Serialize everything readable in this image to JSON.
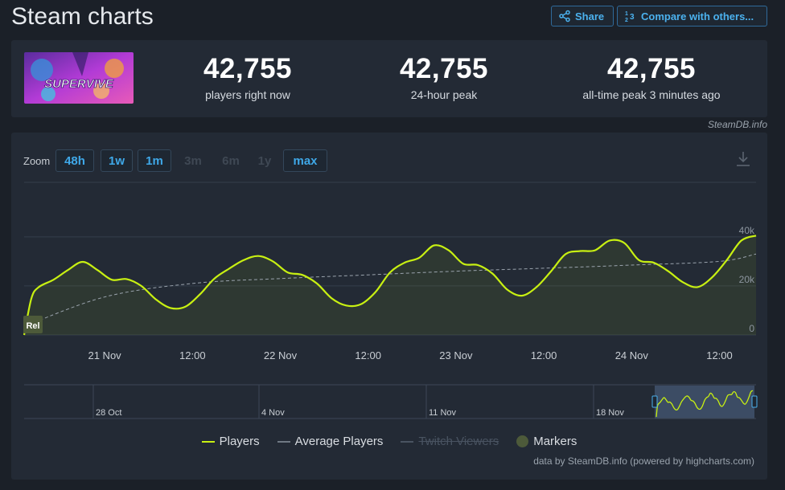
{
  "page": {
    "title": "Steam charts"
  },
  "actions": {
    "share": "Share",
    "compare": "Compare with others..."
  },
  "game": {
    "logo_text": "SUPERVIVE"
  },
  "stats": [
    {
      "value": "42,755",
      "label": "players right now"
    },
    {
      "value": "42,755",
      "label": "24-hour peak"
    },
    {
      "value": "42,755",
      "label": "all-time peak 3 minutes ago"
    }
  ],
  "credit_top": "SteamDB.info",
  "zoom": {
    "label": "Zoom",
    "options": [
      {
        "label": "48h",
        "enabled": true
      },
      {
        "label": "1w",
        "enabled": true
      },
      {
        "label": "1m",
        "enabled": true
      },
      {
        "label": "3m",
        "enabled": false
      },
      {
        "label": "6m",
        "enabled": false
      },
      {
        "label": "1y",
        "enabled": false
      },
      {
        "label": "max",
        "enabled": true
      }
    ]
  },
  "chart_data": {
    "type": "line",
    "x_tick_labels": [
      "21 Nov",
      "12:00",
      "22 Nov",
      "12:00",
      "23 Nov",
      "12:00",
      "24 Nov",
      "12:00"
    ],
    "y_tick_labels": [
      "0",
      "20k",
      "40k"
    ],
    "ylim": [
      0,
      40000
    ],
    "x_start": "2024-11-20T13:00",
    "x_end": "2024-11-24T17:00",
    "grid": true,
    "legend_position": "bottom",
    "annotation": "Rel",
    "series": [
      {
        "name": "Players",
        "color": "#c8f012",
        "points": [
          [
            "2024-11-20T13:00",
            0
          ],
          [
            "2024-11-20T14:00",
            15000
          ],
          [
            "2024-11-20T15:00",
            19500
          ],
          [
            "2024-11-20T17:00",
            22500
          ],
          [
            "2024-11-20T19:00",
            26500
          ],
          [
            "2024-11-20T21:00",
            29800
          ],
          [
            "2024-11-20T23:00",
            26500
          ],
          [
            "2024-11-21T01:00",
            22500
          ],
          [
            "2024-11-21T03:00",
            22800
          ],
          [
            "2024-11-21T05:00",
            20000
          ],
          [
            "2024-11-21T07:00",
            14500
          ],
          [
            "2024-11-21T09:00",
            11000
          ],
          [
            "2024-11-21T11:00",
            11500
          ],
          [
            "2024-11-21T13:00",
            16500
          ],
          [
            "2024-11-21T15:00",
            23000
          ],
          [
            "2024-11-21T17:00",
            27000
          ],
          [
            "2024-11-21T19:00",
            30500
          ],
          [
            "2024-11-21T21:00",
            32200
          ],
          [
            "2024-11-21T23:00",
            30000
          ],
          [
            "2024-11-22T01:00",
            25500
          ],
          [
            "2024-11-22T03:00",
            24500
          ],
          [
            "2024-11-22T05:00",
            21000
          ],
          [
            "2024-11-22T07:00",
            15000
          ],
          [
            "2024-11-22T09:00",
            12000
          ],
          [
            "2024-11-22T11:00",
            12500
          ],
          [
            "2024-11-22T13:00",
            17500
          ],
          [
            "2024-11-22T15:00",
            25500
          ],
          [
            "2024-11-22T17:00",
            29500
          ],
          [
            "2024-11-22T19:00",
            31500
          ],
          [
            "2024-11-22T21:00",
            36500
          ],
          [
            "2024-11-22T23:00",
            34500
          ],
          [
            "2024-11-23T01:00",
            29000
          ],
          [
            "2024-11-23T03:00",
            28500
          ],
          [
            "2024-11-23T05:00",
            25000
          ],
          [
            "2024-11-23T07:00",
            18500
          ],
          [
            "2024-11-23T09:00",
            16000
          ],
          [
            "2024-11-23T11:00",
            19500
          ],
          [
            "2024-11-23T13:00",
            26000
          ],
          [
            "2024-11-23T15:00",
            33000
          ],
          [
            "2024-11-23T17:00",
            34200
          ],
          [
            "2024-11-23T19:00",
            34500
          ],
          [
            "2024-11-23T21:00",
            38500
          ],
          [
            "2024-11-23T23:00",
            37500
          ],
          [
            "2024-11-24T01:00",
            30500
          ],
          [
            "2024-11-24T03:00",
            29500
          ],
          [
            "2024-11-24T05:00",
            26000
          ],
          [
            "2024-11-24T07:00",
            21500
          ],
          [
            "2024-11-24T09:00",
            19500
          ],
          [
            "2024-11-24T11:00",
            23500
          ],
          [
            "2024-11-24T13:00",
            30500
          ],
          [
            "2024-11-24T15:00",
            38500
          ],
          [
            "2024-11-24T17:00",
            40500
          ]
        ]
      },
      {
        "name": "Average Players",
        "color": "#9aa3ad",
        "points": [
          [
            "2024-11-20T13:00",
            3500
          ],
          [
            "2024-11-21T00:00",
            15500
          ],
          [
            "2024-11-21T12:00",
            21000
          ],
          [
            "2024-11-22T00:00",
            23000
          ],
          [
            "2024-11-22T12:00",
            24500
          ],
          [
            "2024-11-23T00:00",
            26000
          ],
          [
            "2024-11-23T12:00",
            27200
          ],
          [
            "2024-11-24T00:00",
            28500
          ],
          [
            "2024-11-24T12:00",
            30000
          ],
          [
            "2024-11-24T17:00",
            33000
          ]
        ]
      }
    ],
    "navigator": {
      "tick_labels": [
        "28 Oct",
        "4 Nov",
        "11 Nov",
        "18 Nov"
      ]
    }
  },
  "legend": [
    {
      "label": "Players",
      "color": "#c8f012",
      "kind": "line",
      "enabled": true
    },
    {
      "label": "Average Players",
      "color": "#6f7883",
      "kind": "line",
      "enabled": true
    },
    {
      "label": "Twitch Viewers",
      "color": "#495361",
      "kind": "line",
      "enabled": false
    },
    {
      "label": "Markers",
      "color": "#4d5a3a",
      "kind": "dot",
      "enabled": true
    }
  ],
  "credit_bottom": "data by SteamDB.info (powered by highcharts.com)"
}
